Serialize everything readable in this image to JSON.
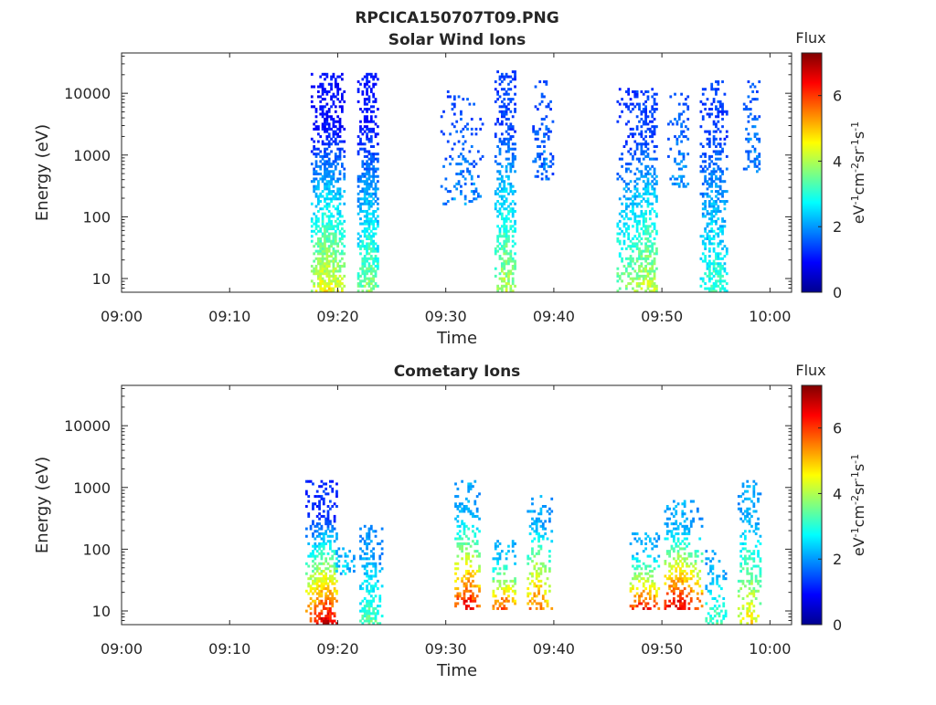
{
  "figure_title": "RPCICA150707T09.PNG",
  "chart_data": [
    {
      "type": "heatmap",
      "title": "Solar Wind Ions",
      "xlabel": "Time",
      "ylabel": "Energy (eV)",
      "x_ticks": [
        "09:00",
        "09:10",
        "09:20",
        "09:30",
        "09:40",
        "09:50",
        "10:00"
      ],
      "x_tick_minutes": [
        0,
        10,
        20,
        30,
        40,
        50,
        60
      ],
      "xlim_minutes": [
        0,
        62
      ],
      "y_scale": "log",
      "y_ticks": [
        "10",
        "100",
        "1000",
        "10000"
      ],
      "y_tick_values": [
        10,
        100,
        1000,
        10000
      ],
      "ylim": [
        6,
        45000
      ],
      "colorbar": {
        "title": "Flux",
        "label": "eV-1cm-2sr-1s-1",
        "ticks": [
          "0",
          "2",
          "4",
          "6"
        ],
        "tick_values": [
          0,
          2,
          4,
          6
        ],
        "range": [
          0,
          7.3
        ]
      },
      "grid": false,
      "bursts": [
        {
          "start_min": 17.5,
          "end_min": 20.5,
          "core_min": 19.0,
          "emin": 6,
          "emax": 20000,
          "flux_high_energy": 1.0,
          "flux_low_energy": 4.6,
          "density": 0.8
        },
        {
          "start_min": 21.8,
          "end_min": 23.7,
          "core_min": 22.8,
          "emin": 6,
          "emax": 20000,
          "flux_high_energy": 1.1,
          "flux_low_energy": 3.8,
          "density": 0.8
        },
        {
          "start_min": 29.5,
          "end_min": 33.5,
          "core_min": 31.5,
          "emin": 150,
          "emax": 12000,
          "flux_high_energy": 1.5,
          "flux_low_energy": 2.0,
          "density": 0.25
        },
        {
          "start_min": 34.5,
          "end_min": 36.5,
          "core_min": 35.5,
          "emin": 6,
          "emax": 22000,
          "flux_high_energy": 1.4,
          "flux_low_energy": 4.1,
          "density": 0.65
        },
        {
          "start_min": 38.0,
          "end_min": 40.0,
          "core_min": 39.0,
          "emin": 400,
          "emax": 15000,
          "flux_high_energy": 1.5,
          "flux_low_energy": 1.8,
          "density": 0.35
        },
        {
          "start_min": 45.8,
          "end_min": 49.5,
          "core_min": 48.5,
          "emin": 6,
          "emax": 12000,
          "flux_high_energy": 1.4,
          "flux_low_energy": 4.2,
          "density": 0.65
        },
        {
          "start_min": 50.5,
          "end_min": 52.5,
          "core_min": 51.5,
          "emin": 300,
          "emax": 10000,
          "flux_high_energy": 1.6,
          "flux_low_energy": 2.0,
          "density": 0.3
        },
        {
          "start_min": 53.5,
          "end_min": 56.0,
          "core_min": 54.8,
          "emin": 6,
          "emax": 15000,
          "flux_high_energy": 1.4,
          "flux_low_energy": 3.2,
          "density": 0.6
        },
        {
          "start_min": 57.5,
          "end_min": 59.0,
          "core_min": 58.3,
          "emin": 500,
          "emax": 15000,
          "flux_high_energy": 1.6,
          "flux_low_energy": 2.0,
          "density": 0.35
        }
      ]
    },
    {
      "type": "heatmap",
      "title": "Cometary Ions",
      "xlabel": "Time",
      "ylabel": "Energy (eV)",
      "x_ticks": [
        "09:00",
        "09:10",
        "09:20",
        "09:30",
        "09:40",
        "09:50",
        "10:00"
      ],
      "x_tick_minutes": [
        0,
        10,
        20,
        30,
        40,
        50,
        60
      ],
      "xlim_minutes": [
        0,
        62
      ],
      "y_scale": "log",
      "y_ticks": [
        "10",
        "100",
        "1000",
        "10000"
      ],
      "y_tick_values": [
        10,
        100,
        1000,
        10000
      ],
      "ylim": [
        6,
        45000
      ],
      "colorbar": {
        "title": "Flux",
        "label": "eV-1cm-2sr-1s-1",
        "ticks": [
          "0",
          "2",
          "4",
          "6"
        ],
        "tick_values": [
          0,
          2,
          4,
          6
        ],
        "range": [
          0,
          7.3
        ]
      },
      "grid": false,
      "bursts": [
        {
          "start_min": 17.0,
          "end_min": 19.8,
          "core_min": 18.8,
          "emin": 6,
          "emax": 1200,
          "flux_high_energy": 1.3,
          "flux_low_energy": 6.8,
          "density": 0.7
        },
        {
          "start_min": 19.8,
          "end_min": 21.5,
          "core_min": 20.5,
          "emin": 40,
          "emax": 110,
          "flux_high_energy": 2.2,
          "flux_low_energy": 2.4,
          "density": 0.45
        },
        {
          "start_min": 22.0,
          "end_min": 24.0,
          "core_min": 22.8,
          "emin": 6,
          "emax": 230,
          "flux_high_energy": 2.0,
          "flux_low_energy": 3.5,
          "density": 0.65
        },
        {
          "start_min": 30.8,
          "end_min": 33.2,
          "core_min": 31.8,
          "emin": 10,
          "emax": 1200,
          "flux_high_energy": 2.2,
          "flux_low_energy": 6.6,
          "density": 0.55
        },
        {
          "start_min": 34.3,
          "end_min": 36.5,
          "core_min": 35.4,
          "emin": 10,
          "emax": 130,
          "flux_high_energy": 2.4,
          "flux_low_energy": 6.1,
          "density": 0.5
        },
        {
          "start_min": 37.5,
          "end_min": 39.8,
          "core_min": 38.3,
          "emin": 10,
          "emax": 700,
          "flux_high_energy": 2.2,
          "flux_low_energy": 5.8,
          "density": 0.45
        },
        {
          "start_min": 47.0,
          "end_min": 49.8,
          "core_min": 48.3,
          "emin": 10,
          "emax": 180,
          "flux_high_energy": 2.2,
          "flux_low_energy": 6.5,
          "density": 0.5
        },
        {
          "start_min": 50.2,
          "end_min": 53.8,
          "core_min": 51.4,
          "emin": 10,
          "emax": 600,
          "flux_high_energy": 2.2,
          "flux_low_energy": 6.8,
          "density": 0.5
        },
        {
          "start_min": 54.0,
          "end_min": 56.0,
          "core_min": 54.8,
          "emin": 6,
          "emax": 90,
          "flux_high_energy": 2.2,
          "flux_low_energy": 3.4,
          "density": 0.4
        },
        {
          "start_min": 57.0,
          "end_min": 59.2,
          "core_min": 58.0,
          "emin": 6,
          "emax": 1200,
          "flux_high_energy": 2.2,
          "flux_low_energy": 4.7,
          "density": 0.45
        }
      ]
    }
  ]
}
